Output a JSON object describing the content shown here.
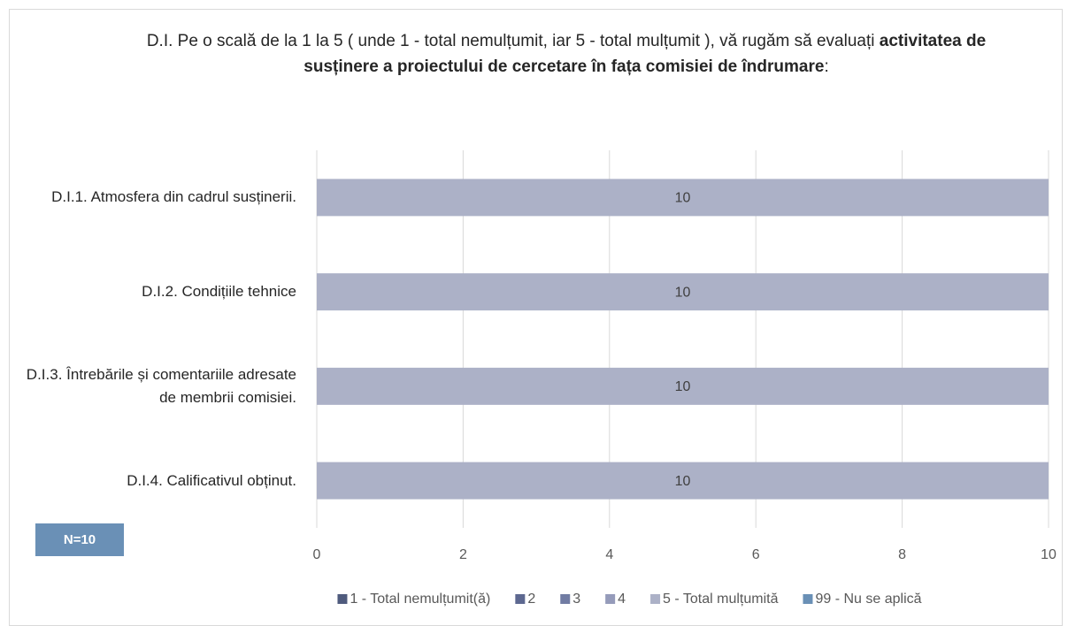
{
  "chart_data": {
    "type": "bar",
    "orientation": "horizontal",
    "stacked": true,
    "title_parts": [
      {
        "text": "D.I. Pe o scală de la 1 la 5 ( unde 1 - total nemulțumit, iar 5 - total mulțumit ), vă rugăm să evaluați ",
        "bold": false
      },
      {
        "text": "activitatea de susținere a proiectului de cercetare în fața comisiei de îndrumare",
        "bold": true
      },
      {
        "text": ":",
        "bold": false
      }
    ],
    "categories": [
      "D.I.1. Atmosfera din cadrul susținerii.",
      "D.I.2. Condițiile tehnice",
      "D.I.3. Întrebările și comentariile adresate de membrii comisiei.",
      "D.I.4. Calificativul obținut."
    ],
    "series": [
      {
        "name": "1 - Total  nemulțumit(ă)",
        "color": "#4f5b7d",
        "values": [
          0,
          0,
          0,
          0
        ]
      },
      {
        "name": "2",
        "color": "#5d6890",
        "values": [
          0,
          0,
          0,
          0
        ]
      },
      {
        "name": "3",
        "color": "#717ca3",
        "values": [
          0,
          0,
          0,
          0
        ]
      },
      {
        "name": "4",
        "color": "#959bba",
        "values": [
          0,
          0,
          0,
          0
        ]
      },
      {
        "name": "5 - Total mulțumită",
        "color": "#acb1c7",
        "values": [
          10,
          10,
          10,
          10
        ]
      },
      {
        "name": "99 - Nu se aplică",
        "color": "#6a90b6",
        "values": [
          0,
          0,
          0,
          0
        ]
      }
    ],
    "xlim": [
      0,
      10
    ],
    "xticks": [
      0,
      2,
      4,
      6,
      8,
      10
    ],
    "grid": true,
    "annotation": "N=10",
    "legend": "bottom"
  }
}
